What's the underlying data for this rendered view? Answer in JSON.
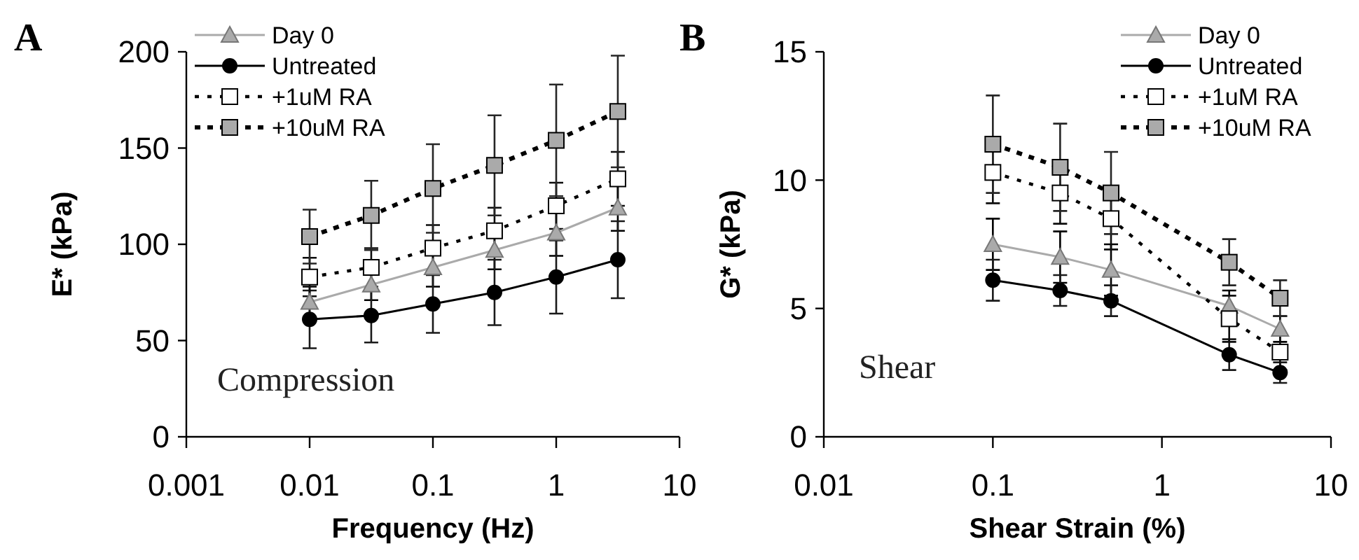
{
  "chart_data": [
    {
      "type": "line",
      "title": "A",
      "xlabel": "Frequency (Hz)",
      "ylabel": "E* (kPa)",
      "annotations": [
        "Compression"
      ],
      "log": "x",
      "xlim": [
        0.001,
        10
      ],
      "xticks": [
        0.001,
        0.01,
        0.1,
        1,
        10
      ],
      "ylim": [
        0,
        200
      ],
      "yticks": [
        0,
        50,
        100,
        150,
        200
      ],
      "grid": false,
      "legend": "top left",
      "series": [
        {
          "name": "Day 0",
          "color": "#aaaaaa",
          "marker": "triangle",
          "line_style": "solid",
          "x": [
            0.01,
            0.0316,
            0.1,
            0.316,
            1,
            3.16
          ],
          "values": [
            70,
            79,
            88,
            97,
            106,
            119
          ],
          "errors": [
            8,
            8,
            10,
            10,
            12,
            12
          ]
        },
        {
          "name": "Untreated",
          "color": "#000000",
          "marker": "circle",
          "line_style": "solid",
          "x": [
            0.01,
            0.0316,
            0.1,
            0.316,
            1,
            3.16
          ],
          "values": [
            61,
            63,
            69,
            75,
            83,
            92
          ],
          "errors": [
            15,
            14,
            15,
            17,
            19,
            20
          ]
        },
        {
          "name": "+1uM RA",
          "color": "#ffffff",
          "marker": "square",
          "line_style": "dotted",
          "x": [
            0.01,
            0.0316,
            0.1,
            0.316,
            1,
            3.16
          ],
          "values": [
            83,
            88,
            98,
            107,
            120,
            134
          ],
          "errors": [
            10,
            10,
            12,
            12,
            12,
            14
          ]
        },
        {
          "name": "+10uM RA",
          "color": "#aaaaaa",
          "marker": "square",
          "line_style": "dashed",
          "x": [
            0.01,
            0.0316,
            0.1,
            0.316,
            1,
            3.16
          ],
          "values": [
            104,
            115,
            129,
            141,
            154,
            169
          ],
          "errors": [
            14,
            18,
            23,
            26,
            29,
            29
          ]
        }
      ]
    },
    {
      "type": "line",
      "title": "B",
      "xlabel": "Shear Strain (%)",
      "ylabel": "G* (kPa)",
      "annotations": [
        "Shear"
      ],
      "log": "x",
      "xlim": [
        0.01,
        10
      ],
      "xticks": [
        0.01,
        0.1,
        1,
        10
      ],
      "ylim": [
        0,
        15
      ],
      "yticks": [
        0,
        5,
        10,
        15
      ],
      "grid": false,
      "legend": "top right",
      "series": [
        {
          "name": "Day 0",
          "color": "#aaaaaa",
          "marker": "triangle",
          "line_style": "solid",
          "x": [
            0.1,
            0.25,
            0.5,
            2.5,
            5
          ],
          "values": [
            7.5,
            7.0,
            6.5,
            5.1,
            4.2
          ],
          "errors": [
            1,
            1,
            1,
            0.6,
            0.5
          ]
        },
        {
          "name": "Untreated",
          "color": "#000000",
          "marker": "circle",
          "line_style": "solid",
          "x": [
            0.1,
            0.25,
            0.5,
            2.5,
            5
          ],
          "values": [
            6.1,
            5.7,
            5.3,
            3.2,
            2.5
          ],
          "errors": [
            0.8,
            0.6,
            0.6,
            0.6,
            0.4
          ]
        },
        {
          "name": "+1uM RA",
          "color": "#ffffff",
          "marker": "square",
          "line_style": "dotted",
          "x": [
            0.1,
            0.25,
            0.5,
            2.5,
            5
          ],
          "values": [
            10.3,
            9.5,
            8.5,
            4.6,
            3.3
          ],
          "errors": [
            1.2,
            1.2,
            1.2,
            0.9,
            0.7
          ]
        },
        {
          "name": "+10uM RA",
          "color": "#aaaaaa",
          "marker": "square",
          "line_style": "dashed",
          "x": [
            0.1,
            0.25,
            0.5,
            2.5,
            5
          ],
          "values": [
            11.4,
            10.5,
            9.5,
            6.8,
            5.4
          ],
          "errors": [
            1.9,
            1.7,
            1.6,
            0.9,
            0.7
          ]
        }
      ]
    }
  ]
}
